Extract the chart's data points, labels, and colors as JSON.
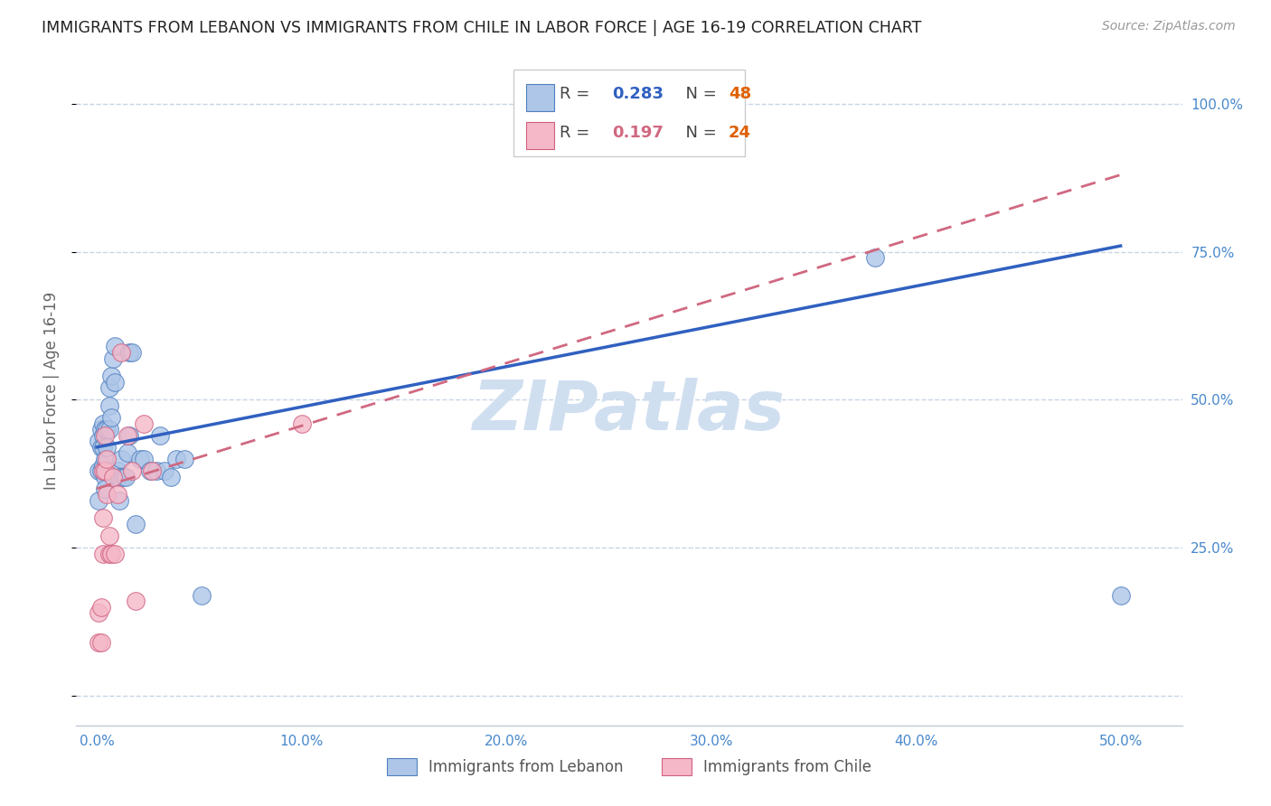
{
  "title": "IMMIGRANTS FROM LEBANON VS IMMIGRANTS FROM CHILE IN LABOR FORCE | AGE 16-19 CORRELATION CHART",
  "source_text": "Source: ZipAtlas.com",
  "ylabel": "In Labor Force | Age 16-19",
  "xlabel": "",
  "x_ticks": [
    0.0,
    0.1,
    0.2,
    0.3,
    0.4,
    0.5
  ],
  "x_tick_labels": [
    "0.0%",
    "10.0%",
    "20.0%",
    "30.0%",
    "40.0%",
    "50.0%"
  ],
  "y_ticks": [
    0.0,
    0.25,
    0.5,
    0.75,
    1.0
  ],
  "y_tick_labels_right": [
    "",
    "25.0%",
    "50.0%",
    "75.0%",
    "100.0%"
  ],
  "xlim": [
    -0.01,
    0.53
  ],
  "ylim": [
    -0.05,
    1.08
  ],
  "lebanon_R": 0.283,
  "lebanon_N": 48,
  "chile_R": 0.197,
  "chile_N": 24,
  "lebanon_color": "#aec6e8",
  "chile_color": "#f4b8c8",
  "lebanon_edge_color": "#5080c0",
  "chile_edge_color": "#d06080",
  "lebanon_line_color": "#3060c0",
  "chile_line_color": "#d06880",
  "watermark": "ZIPatlas",
  "watermark_color": "#d0dff0",
  "background_color": "#ffffff",
  "grid_color": "#c8d4e4",
  "axis_color": "#c0c8d8",
  "tick_label_color": "#4888cc",
  "title_fontsize": 12.5,
  "source_fontsize": 10,
  "axis_label_fontsize": 12,
  "watermark_fontsize": 55,
  "lebanon_x": [
    0.001,
    0.001,
    0.001,
    0.002,
    0.002,
    0.002,
    0.003,
    0.003,
    0.003,
    0.003,
    0.004,
    0.004,
    0.004,
    0.004,
    0.005,
    0.005,
    0.005,
    0.006,
    0.006,
    0.006,
    0.007,
    0.007,
    0.008,
    0.009,
    0.009,
    0.01,
    0.011,
    0.011,
    0.012,
    0.013,
    0.014,
    0.015,
    0.016,
    0.016,
    0.017,
    0.019,
    0.021,
    0.023,
    0.026,
    0.029,
    0.031,
    0.033,
    0.036,
    0.039,
    0.043,
    0.051,
    0.38,
    0.5
  ],
  "lebanon_y": [
    0.43,
    0.38,
    0.33,
    0.45,
    0.42,
    0.38,
    0.46,
    0.44,
    0.42,
    0.39,
    0.45,
    0.4,
    0.37,
    0.35,
    0.45,
    0.42,
    0.38,
    0.52,
    0.49,
    0.45,
    0.54,
    0.47,
    0.57,
    0.59,
    0.53,
    0.38,
    0.33,
    0.37,
    0.4,
    0.37,
    0.37,
    0.41,
    0.44,
    0.58,
    0.58,
    0.29,
    0.4,
    0.4,
    0.38,
    0.38,
    0.44,
    0.38,
    0.37,
    0.4,
    0.4,
    0.17,
    0.74,
    0.17
  ],
  "chile_x": [
    0.001,
    0.001,
    0.002,
    0.002,
    0.003,
    0.003,
    0.003,
    0.004,
    0.004,
    0.005,
    0.005,
    0.006,
    0.006,
    0.007,
    0.008,
    0.009,
    0.01,
    0.012,
    0.015,
    0.017,
    0.019,
    0.023,
    0.027,
    0.1
  ],
  "chile_y": [
    0.14,
    0.09,
    0.15,
    0.09,
    0.38,
    0.3,
    0.24,
    0.44,
    0.38,
    0.4,
    0.34,
    0.27,
    0.24,
    0.24,
    0.37,
    0.24,
    0.34,
    0.58,
    0.44,
    0.38,
    0.16,
    0.46,
    0.38,
    0.46
  ],
  "leb_line_x0": 0.0,
  "leb_line_y0": 0.42,
  "leb_line_x1": 0.5,
  "leb_line_y1": 0.76,
  "chile_line_x0": 0.0,
  "chile_line_y0": 0.35,
  "chile_line_x1": 0.5,
  "chile_line_y1": 0.88
}
